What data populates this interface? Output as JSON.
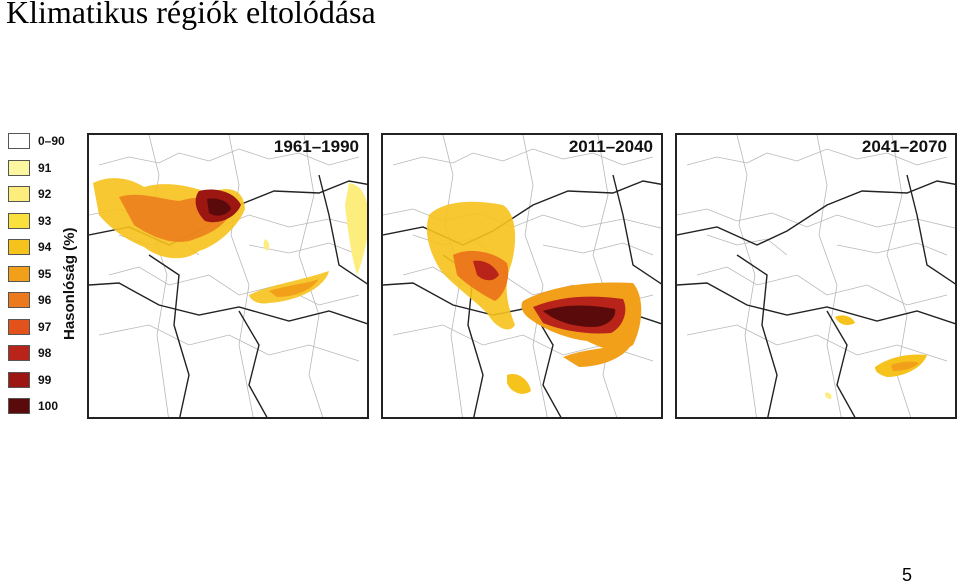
{
  "slide": {
    "title": "Klimatikus régiók eltolódása",
    "page_number": "5"
  },
  "legend": {
    "axis_label": "Hasonlóság (%)",
    "items": [
      {
        "label": "0–90",
        "color": "#ffffff"
      },
      {
        "label": "91",
        "color": "#fdf6a0"
      },
      {
        "label": "92",
        "color": "#fced7c"
      },
      {
        "label": "93",
        "color": "#f9e03c"
      },
      {
        "label": "94",
        "color": "#f6c21c"
      },
      {
        "label": "95",
        "color": "#f2a01a"
      },
      {
        "label": "96",
        "color": "#ec7a1c"
      },
      {
        "label": "97",
        "color": "#e2521a"
      },
      {
        "label": "98",
        "color": "#b8241a"
      },
      {
        "label": "99",
        "color": "#9c1612"
      },
      {
        "label": "100",
        "color": "#5a0a0a"
      }
    ]
  },
  "maps": [
    {
      "period": "1961–1990"
    },
    {
      "period": "2011–2040"
    },
    {
      "period": "2041–2070"
    }
  ]
}
